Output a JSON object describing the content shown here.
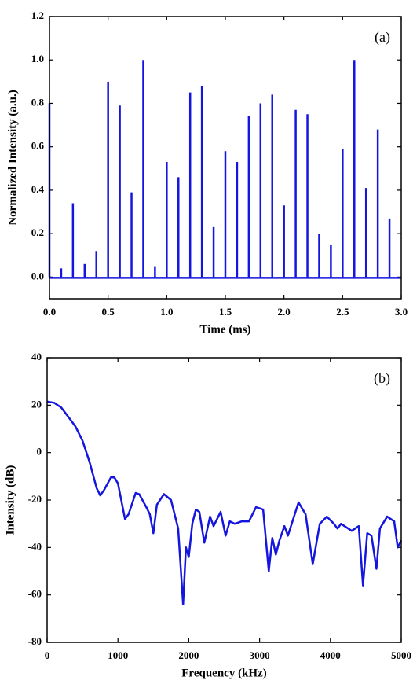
{
  "chart_data": [
    {
      "type": "stem",
      "annotation": "(a)",
      "xlabel": "Time (ms)",
      "ylabel": "Normalized Intensity (a.u.)",
      "color": "#1515e0",
      "x": [
        0,
        0.1,
        0.2,
        0.3,
        0.4,
        0.5,
        0.6,
        0.7,
        0.8,
        0.9,
        1.0,
        1.1,
        1.2,
        1.3,
        1.4,
        1.5,
        1.6,
        1.7,
        1.8,
        1.9,
        2.0,
        2.1,
        2.2,
        2.3,
        2.4,
        2.5,
        2.6,
        2.7,
        2.8,
        2.9
      ],
      "values": [
        0.8,
        0.04,
        0.34,
        0.06,
        0.12,
        0.9,
        0.79,
        0.39,
        1.0,
        0.05,
        0.53,
        0.46,
        0.85,
        0.88,
        0.23,
        0.58,
        0.53,
        0.74,
        0.8,
        0.84,
        0.33,
        0.77,
        0.75,
        0.2,
        0.15,
        0.59,
        1.0,
        0.41,
        0.68,
        0.27
      ],
      "xlim": [
        0,
        3
      ],
      "xticks": [
        {
          "value": 0,
          "label": "0.0"
        },
        0.5,
        {
          "value": 1,
          "label": "1.0"
        },
        1.5,
        {
          "value": 2,
          "label": "2.0"
        },
        2.5,
        {
          "value": 3,
          "label": "3.0"
        }
      ],
      "ylim": [
        -0.1,
        1.2
      ],
      "yticks": [
        {
          "value": 0,
          "label": "0.0"
        },
        0.2,
        0.4,
        0.6,
        0.8,
        {
          "value": 1,
          "label": "1.0"
        },
        0.2,
        {
          "value": 1.2,
          "label": "1.2"
        }
      ]
    },
    {
      "type": "line",
      "annotation": "(b)",
      "xlabel": "Frequency (kHz)",
      "ylabel": "Intensity (dB)",
      "color": "#1515e0",
      "x": [
        0,
        100,
        200,
        300,
        400,
        500,
        600,
        700,
        750,
        800,
        900,
        950,
        1000,
        1100,
        1150,
        1250,
        1300,
        1400,
        1450,
        1500,
        1550,
        1650,
        1750,
        1850,
        1920,
        1960,
        2000,
        2050,
        2100,
        2150,
        2220,
        2300,
        2350,
        2450,
        2520,
        2580,
        2650,
        2750,
        2850,
        2950,
        3050,
        3130,
        3180,
        3230,
        3280,
        3350,
        3400,
        3550,
        3650,
        3750,
        3850,
        3950,
        4050,
        4100,
        4150,
        4200,
        4300,
        4400,
        4460,
        4520,
        4580,
        4650,
        4700,
        4800,
        4900,
        4950,
        5000
      ],
      "values": [
        21.5,
        21,
        19,
        15,
        11,
        5,
        -4,
        -15,
        -18,
        -16,
        -10.5,
        -10.5,
        -13,
        -28,
        -26,
        -17,
        -17.5,
        -23,
        -26,
        -34,
        -22,
        -17.5,
        -20,
        -32,
        -64,
        -40,
        -44,
        -30,
        -24,
        -25,
        -38,
        -27,
        -31,
        -25,
        -35,
        -29,
        -30,
        -29,
        -29,
        -23,
        -24,
        -50,
        -36,
        -43,
        -37,
        -31,
        -35,
        -21,
        -26,
        -47,
        -30,
        -27,
        -30,
        -32,
        -30,
        -31,
        -33,
        -31,
        -56,
        -34,
        -35,
        -49,
        -32,
        -27,
        -29,
        -40,
        -37
      ],
      "xlim": [
        0,
        5000
      ],
      "xticks": [
        0,
        1000,
        2000,
        3000,
        4000,
        5000
      ],
      "ylim": [
        -80,
        40
      ],
      "yticks": [
        -80,
        -60,
        -40,
        -20,
        0,
        20,
        40
      ]
    }
  ]
}
